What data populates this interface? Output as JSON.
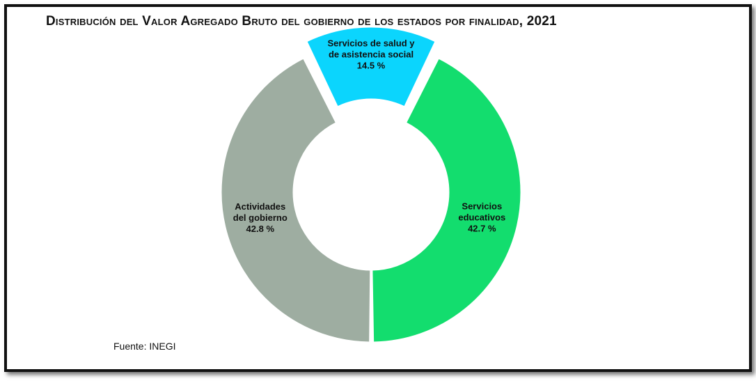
{
  "chart_data": {
    "type": "pie",
    "title": "Distribución del Valor Agregado Bruto del gobierno de los estados por finalidad, 2021",
    "categories": [
      "Servicios educativos",
      "Actividades del gobierno",
      "Servicios de salud y de asistencia social"
    ],
    "values": [
      42.7,
      42.8,
      14.5
    ],
    "unit": "%",
    "labels": [
      {
        "lines": [
          "Servicios",
          "educativos"
        ],
        "value_text": "42.7 %"
      },
      {
        "lines": [
          "Actividades",
          "del gobierno"
        ],
        "value_text": "42.8 %"
      },
      {
        "lines": [
          "Servicios de salud y",
          "de asistencia social"
        ],
        "value_text": "14.5 %"
      }
    ],
    "colors": [
      "#13dd6e",
      "#9eada1",
      "#0bd5fd"
    ],
    "exploded": [
      false,
      false,
      true
    ],
    "legend": "none"
  },
  "source": "Fuente: INEGI"
}
